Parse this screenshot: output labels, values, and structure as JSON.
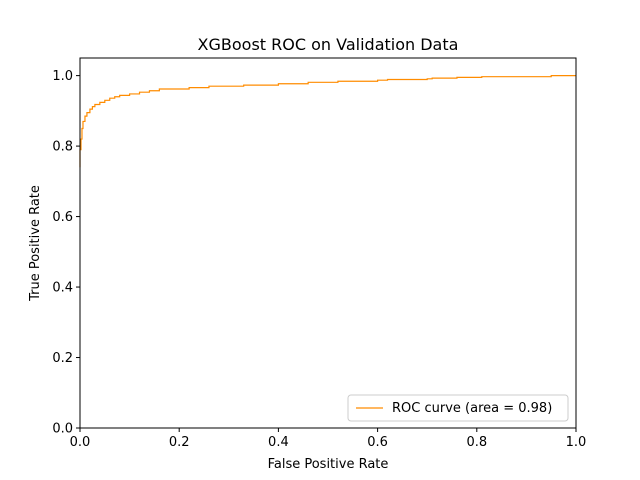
{
  "chart_data": {
    "type": "line",
    "title": "XGBoost ROC on Validation Data",
    "xlabel": "False Positive Rate",
    "ylabel": "True Positive Rate",
    "xlim": [
      0.0,
      1.0
    ],
    "ylim": [
      0.0,
      1.05
    ],
    "x_ticks": [
      "0.0",
      "0.2",
      "0.4",
      "0.6",
      "0.8",
      "1.0"
    ],
    "y_ticks": [
      "0.0",
      "0.2",
      "0.4",
      "0.6",
      "0.8",
      "1.0"
    ],
    "grid": false,
    "legend_position": "lower-right",
    "series": [
      {
        "name": "ROC curve (area = 0.98)",
        "color": "#ff8c00",
        "step": true,
        "points": [
          [
            0.0,
            0.74
          ],
          [
            0.0,
            0.79
          ],
          [
            0.002,
            0.79
          ],
          [
            0.002,
            0.82
          ],
          [
            0.004,
            0.82
          ],
          [
            0.004,
            0.85
          ],
          [
            0.006,
            0.85
          ],
          [
            0.006,
            0.87
          ],
          [
            0.01,
            0.87
          ],
          [
            0.01,
            0.885
          ],
          [
            0.014,
            0.885
          ],
          [
            0.014,
            0.895
          ],
          [
            0.02,
            0.895
          ],
          [
            0.02,
            0.905
          ],
          [
            0.025,
            0.905
          ],
          [
            0.025,
            0.912
          ],
          [
            0.03,
            0.912
          ],
          [
            0.03,
            0.918
          ],
          [
            0.04,
            0.918
          ],
          [
            0.04,
            0.924
          ],
          [
            0.05,
            0.924
          ],
          [
            0.05,
            0.93
          ],
          [
            0.06,
            0.93
          ],
          [
            0.06,
            0.936
          ],
          [
            0.07,
            0.936
          ],
          [
            0.07,
            0.94
          ],
          [
            0.08,
            0.94
          ],
          [
            0.08,
            0.944
          ],
          [
            0.1,
            0.944
          ],
          [
            0.1,
            0.948
          ],
          [
            0.12,
            0.948
          ],
          [
            0.12,
            0.953
          ],
          [
            0.14,
            0.953
          ],
          [
            0.14,
            0.957
          ],
          [
            0.16,
            0.957
          ],
          [
            0.16,
            0.962
          ],
          [
            0.22,
            0.962
          ],
          [
            0.22,
            0.966
          ],
          [
            0.26,
            0.966
          ],
          [
            0.26,
            0.97
          ],
          [
            0.33,
            0.97
          ],
          [
            0.33,
            0.973
          ],
          [
            0.4,
            0.973
          ],
          [
            0.4,
            0.977
          ],
          [
            0.46,
            0.977
          ],
          [
            0.46,
            0.981
          ],
          [
            0.52,
            0.981
          ],
          [
            0.52,
            0.984
          ],
          [
            0.6,
            0.984
          ],
          [
            0.6,
            0.987
          ],
          [
            0.62,
            0.987
          ],
          [
            0.62,
            0.989
          ],
          [
            0.7,
            0.989
          ],
          [
            0.7,
            0.991
          ],
          [
            0.71,
            0.991
          ],
          [
            0.71,
            0.993
          ],
          [
            0.76,
            0.993
          ],
          [
            0.76,
            0.995
          ],
          [
            0.81,
            0.995
          ],
          [
            0.81,
            0.997
          ],
          [
            0.95,
            0.997
          ],
          [
            0.95,
            1.0
          ],
          [
            1.0,
            1.0
          ]
        ]
      }
    ]
  }
}
